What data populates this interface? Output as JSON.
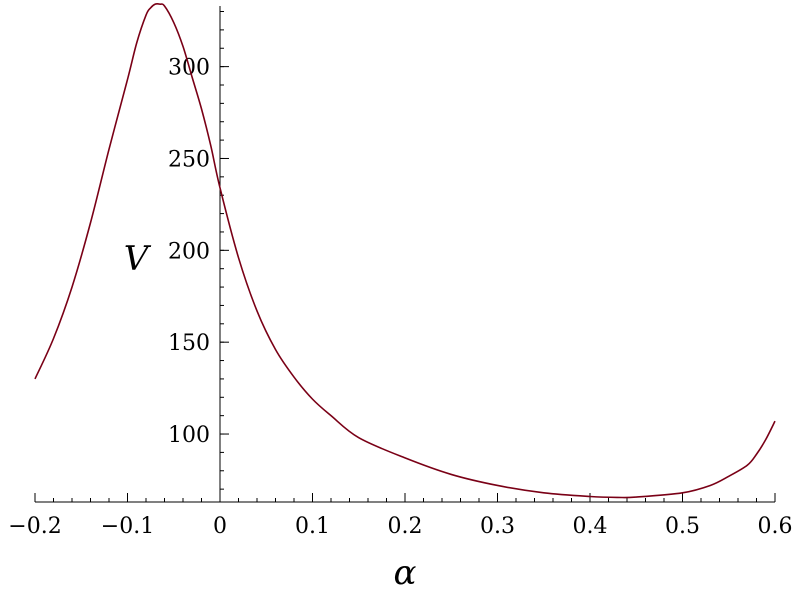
{
  "chart_data": {
    "type": "line",
    "title": "",
    "xlabel": "α",
    "ylabel": "V",
    "xlim": [
      -0.2,
      0.6
    ],
    "ylim": [
      63,
      333
    ],
    "x_ticks": [
      -0.2,
      -0.1,
      0,
      0.1,
      0.2,
      0.3,
      0.4,
      0.5,
      0.6
    ],
    "x_tick_labels": [
      "−0.2",
      "−0.1",
      "0",
      "0.1",
      "0.2",
      "0.3",
      "0.4",
      "0.5",
      "0.6"
    ],
    "y_ticks": [
      100,
      150,
      200,
      250,
      300
    ],
    "y_tick_labels": [
      "100",
      "150",
      "200",
      "250",
      "300"
    ],
    "grid": false,
    "legend": "none",
    "series": [
      {
        "color": "#7a0016",
        "x": [
          -0.2,
          -0.18,
          -0.16,
          -0.14,
          -0.12,
          -0.1,
          -0.09,
          -0.08,
          -0.075,
          -0.07,
          -0.065,
          -0.06,
          -0.05,
          -0.04,
          -0.03,
          -0.02,
          -0.01,
          0,
          0.02,
          0.04,
          0.06,
          0.08,
          0.1,
          0.12,
          0.15,
          0.2,
          0.25,
          0.3,
          0.35,
          0.4,
          0.43,
          0.45,
          0.5,
          0.53,
          0.55,
          0.57,
          0.58,
          0.59,
          0.6
        ],
        "y": [
          130,
          152,
          180,
          215,
          255,
          293,
          313,
          328,
          332,
          334,
          334,
          333,
          324,
          311,
          294,
          277,
          257,
          234,
          196,
          167,
          146,
          131,
          119,
          110,
          98,
          87,
          78,
          72,
          68,
          66,
          65.5,
          65.7,
          68,
          72,
          77,
          83,
          89,
          97,
          107
        ]
      }
    ]
  }
}
